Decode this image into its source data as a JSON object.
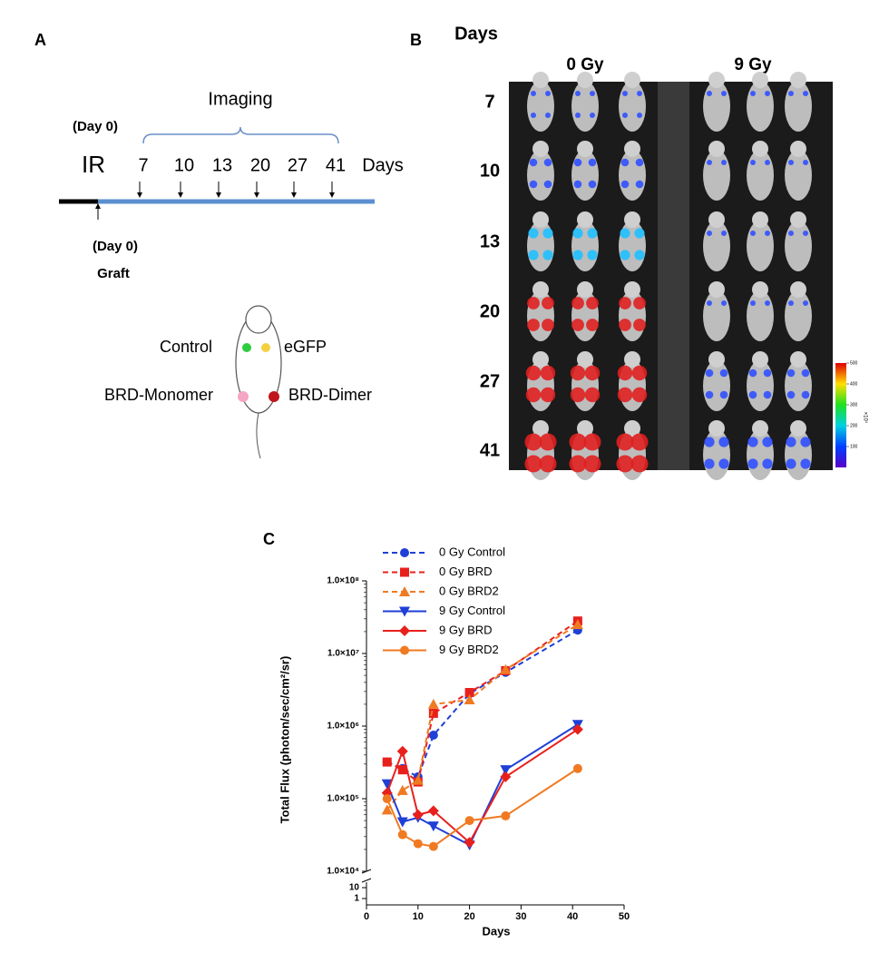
{
  "panel_a": {
    "label": "A",
    "imaging": "Imaging",
    "ir_day": "(Day 0)",
    "ir": "IR",
    "days": [
      7,
      10,
      13,
      20,
      27,
      41
    ],
    "days_unit": "Days",
    "graft_day": "(Day 0)",
    "graft": "Graft",
    "sites": {
      "control": "Control",
      "egfp": "eGFP",
      "monomer": "BRD-Monomer",
      "dimer": "BRD-Dimer"
    }
  },
  "panel_b": {
    "label": "B",
    "axis_label": "Days",
    "columns": [
      "0 Gy",
      "9 Gy"
    ],
    "days": [
      7,
      10,
      13,
      20,
      27,
      41
    ],
    "colorbar_lim": [
      0,
      500
    ],
    "colorbar_ticks": [
      100,
      200,
      300,
      400,
      500
    ],
    "colorbar_unit": "×10⁴"
  },
  "chart_data": {
    "type": "line",
    "panel_label": "C",
    "x_label": "Days",
    "y_label": "Total Flux (photon/sec/cm²/sr)",
    "x": [
      4,
      7,
      10,
      13,
      20,
      27,
      41
    ],
    "xlim": [
      0,
      50
    ],
    "xticks": [
      0,
      10,
      20,
      30,
      40,
      50
    ],
    "y_scale": "log",
    "ylim": [
      10000,
      100000000
    ],
    "yticks": [
      {
        "value": 10000,
        "label": "1.0×10⁴"
      },
      {
        "value": 100000,
        "label": "1.0×10⁵"
      },
      {
        "value": 1000000,
        "label": "1.0×10⁶"
      },
      {
        "value": 10000000,
        "label": "1.0×10⁷"
      },
      {
        "value": 100000000,
        "label": "1.0×10⁸"
      }
    ],
    "lower_yticks": [
      1,
      10
    ],
    "legend": "upper left",
    "series": [
      {
        "name": "0 Gy Control",
        "color": "#1f3fd6",
        "marker": "circle",
        "dashed": true,
        "values": [
          320000,
          260000,
          200000,
          750000,
          2800000,
          5500000,
          21000000
        ]
      },
      {
        "name": "0 Gy BRD",
        "color": "#e8201c",
        "marker": "square",
        "dashed": true,
        "values": [
          320000,
          250000,
          170000,
          1500000,
          2900000,
          5800000,
          28000000
        ]
      },
      {
        "name": "0 Gy BRD2",
        "color": "#f07a22",
        "marker": "triangle-up",
        "dashed": true,
        "values": [
          70000,
          130000,
          180000,
          2000000,
          2300000,
          6000000,
          25000000
        ]
      },
      {
        "name": "9 Gy Control",
        "color": "#1f3fd6",
        "marker": "triangle-down",
        "dashed": false,
        "values": [
          160000,
          48000,
          55000,
          42000,
          23000,
          250000,
          1050000
        ]
      },
      {
        "name": "9 Gy BRD",
        "color": "#e8201c",
        "marker": "diamond",
        "dashed": false,
        "values": [
          120000,
          450000,
          60000,
          68000,
          25000,
          200000,
          900000
        ]
      },
      {
        "name": "9 Gy BRD2",
        "color": "#f07a22",
        "marker": "circle",
        "dashed": false,
        "values": [
          100000,
          32000,
          24000,
          22000,
          50000,
          58000,
          260000
        ]
      }
    ]
  }
}
